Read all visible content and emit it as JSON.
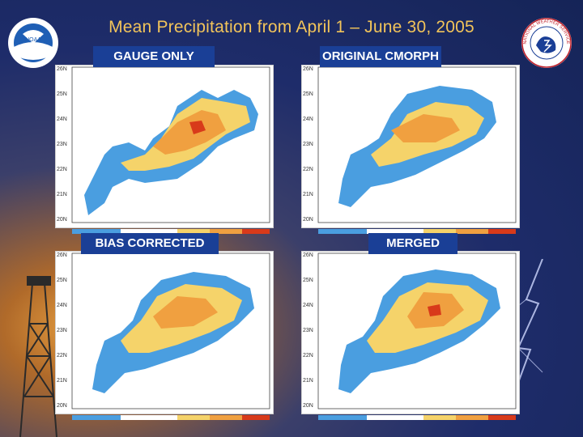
{
  "title": "Mean Precipitation  from April 1 – June 30, 2005",
  "logos": {
    "left_text": "NOAA",
    "right_text": "NATIONAL WEATHER SERVICE"
  },
  "panels": [
    {
      "label": "GAUGE ONLY"
    },
    {
      "label": "ORIGINAL CMORPH"
    },
    {
      "label": "BIAS CORRECTED"
    },
    {
      "label": "MERGED"
    }
  ],
  "lat_labels": [
    "26N",
    "25N",
    "24N",
    "23N",
    "22N",
    "21N",
    "20N"
  ],
  "colors": {
    "title": "#f2c45a",
    "label_bg": "#1a3f96",
    "low": "#4a9ee0",
    "mid": "#f5d36a",
    "high": "#f08a2a",
    "max": "#d83a1a"
  }
}
